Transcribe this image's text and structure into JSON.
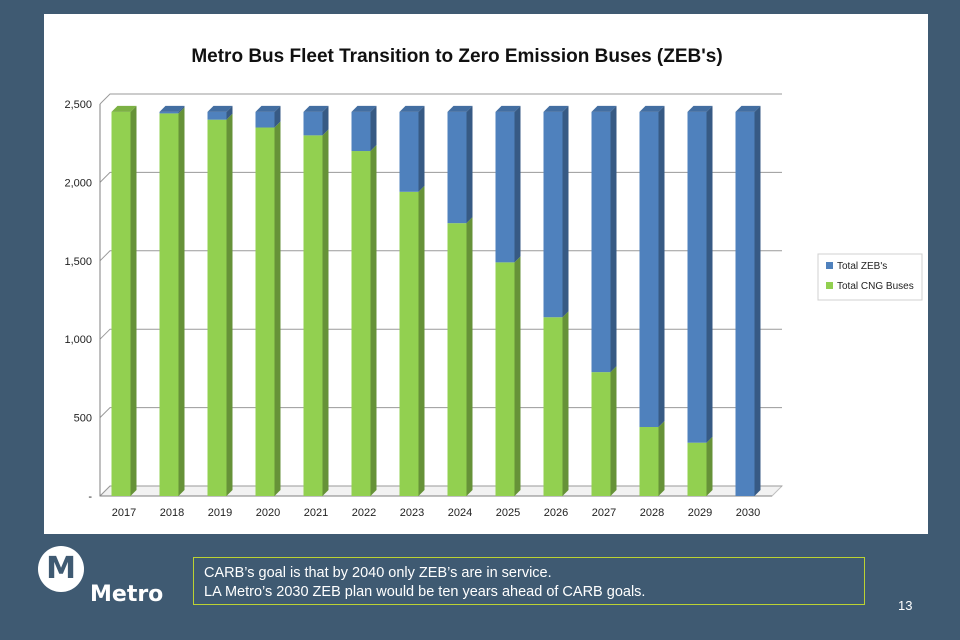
{
  "chart_data": {
    "type": "bar",
    "stacked": true,
    "title": "Metro Bus Fleet Transition to Zero Emission Buses (ZEB's)",
    "categories": [
      "2017",
      "2018",
      "2019",
      "2020",
      "2021",
      "2022",
      "2023",
      "2024",
      "2025",
      "2026",
      "2027",
      "2028",
      "2029",
      "2030"
    ],
    "series": [
      {
        "name": "Total CNG Buses",
        "color": "#92d050",
        "values": [
          2450,
          2440,
          2400,
          2350,
          2300,
          2200,
          1940,
          1740,
          1490,
          1140,
          790,
          440,
          340,
          0
        ]
      },
      {
        "name": "Total ZEB's",
        "color": "#4f81bd",
        "values": [
          0,
          10,
          50,
          100,
          150,
          250,
          510,
          710,
          960,
          1310,
          1660,
          2010,
          2110,
          2450
        ]
      }
    ],
    "ylim": [
      0,
      2500
    ],
    "yticks": [
      0,
      500,
      1000,
      1500,
      2000,
      2500
    ],
    "ytick_labels": [
      "-",
      "500",
      "1,000",
      "1,500",
      "2,000",
      "2,500"
    ],
    "xlabel": "",
    "ylabel": "",
    "grid": true,
    "legend_position": "right"
  },
  "footer": {
    "brand": "Metro",
    "logo_letter": "M",
    "note_line1": "CARB’s goal is that by 2040 only ZEB’s are in service.",
    "note_line2": "LA Metro’s 2030 ZEB plan would be ten years ahead of CARB goals.",
    "page_number": "13"
  }
}
